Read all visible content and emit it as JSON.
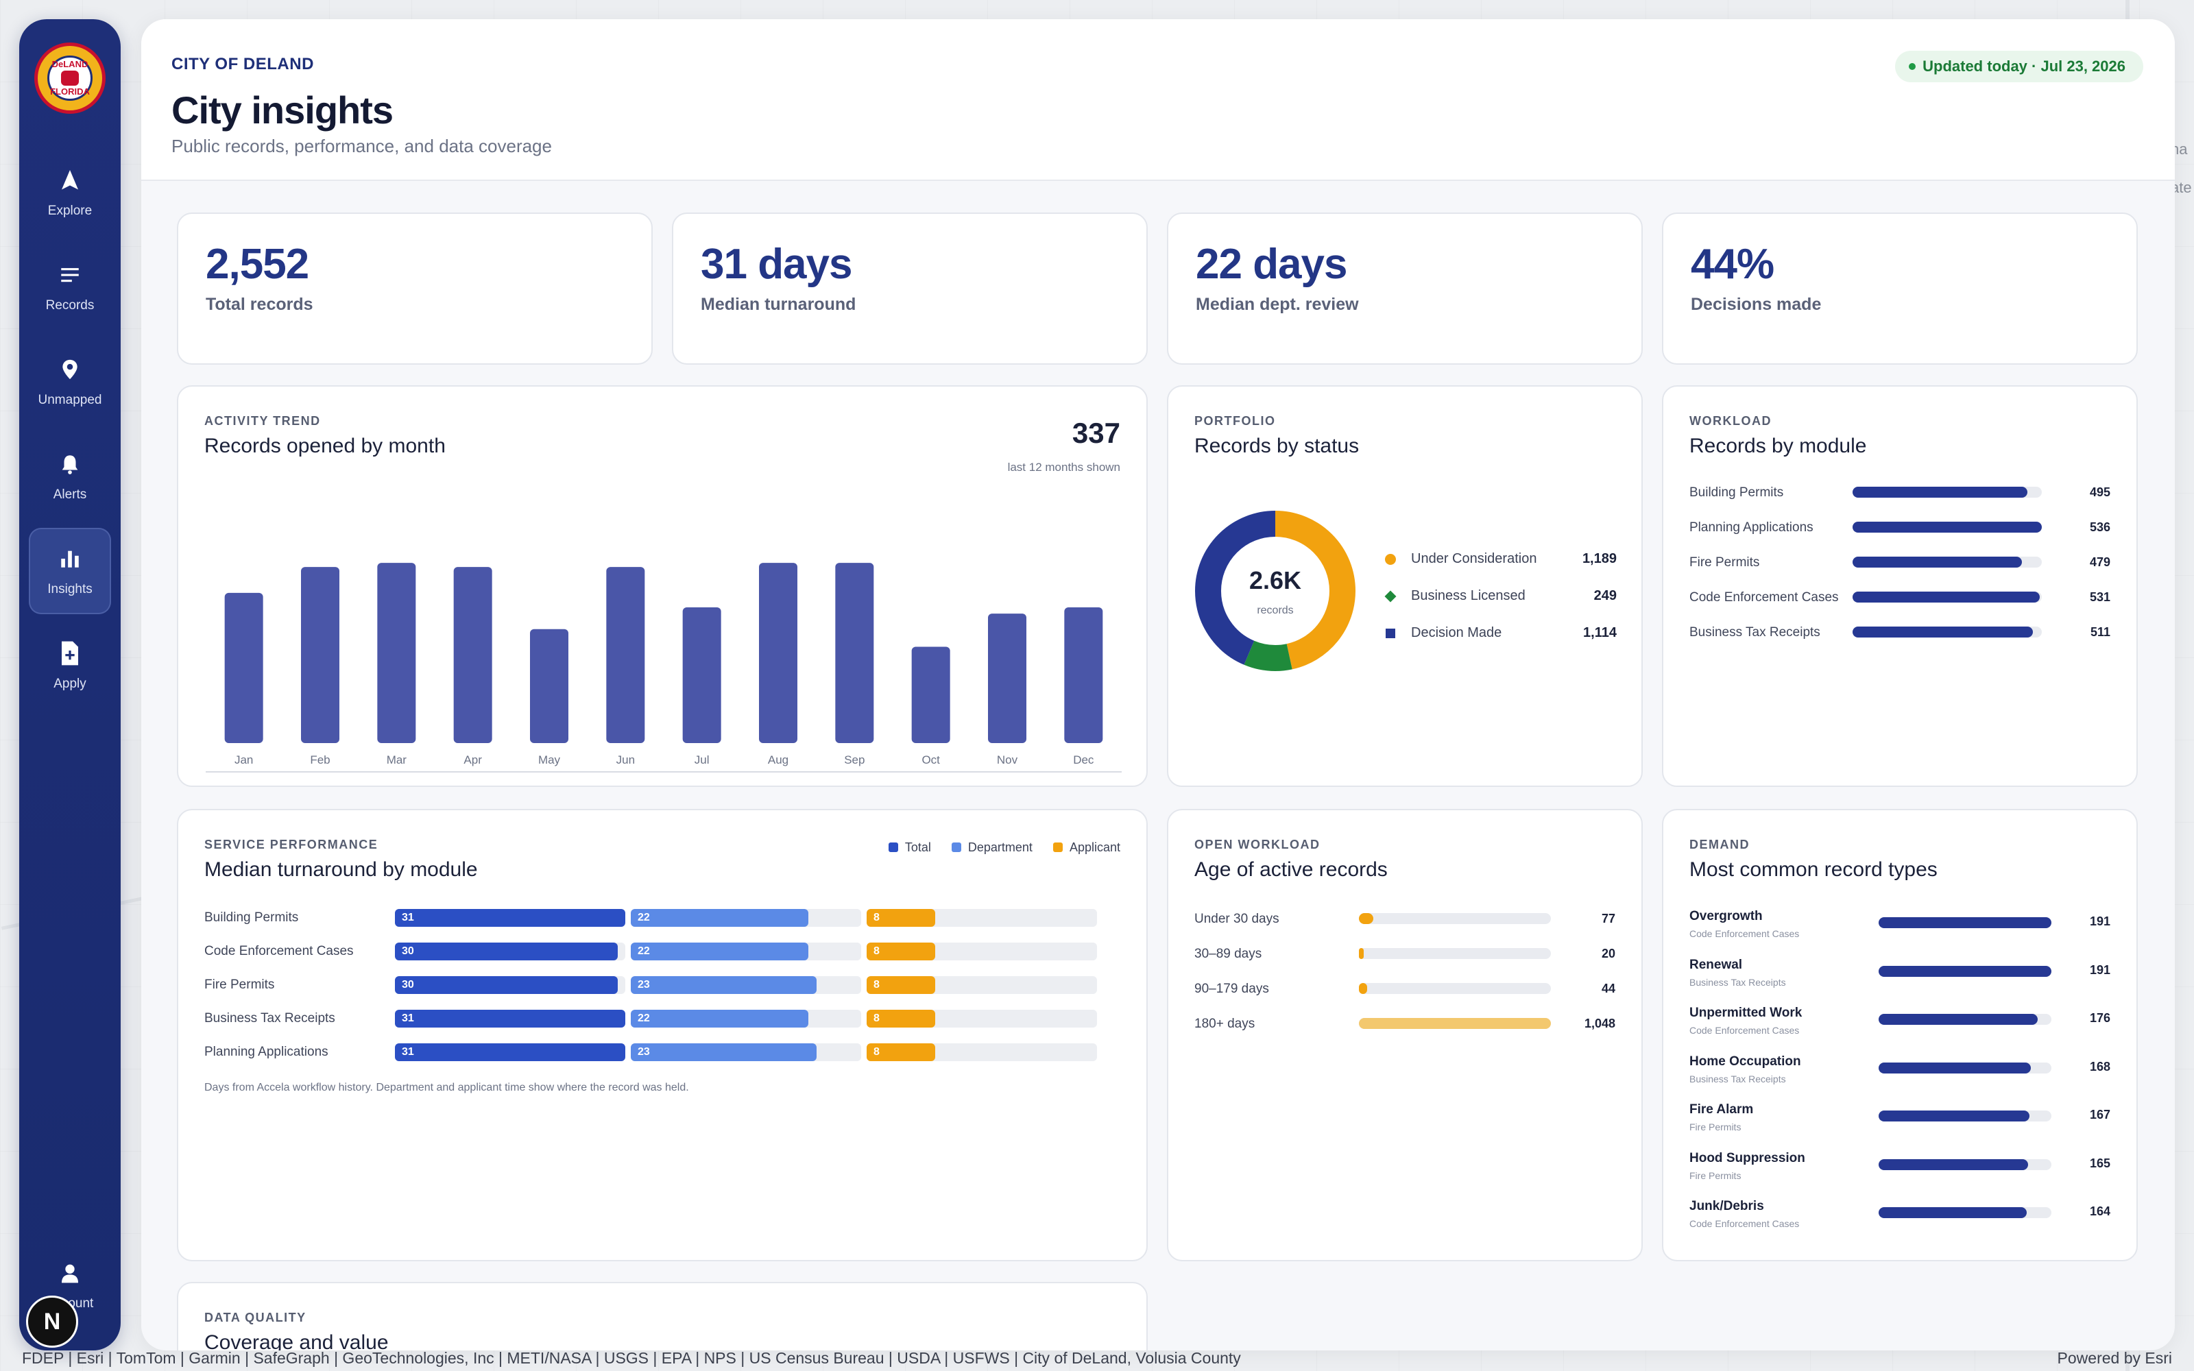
{
  "app": {
    "city_label": "CITY OF DELAND",
    "title": "City insights",
    "subtitle": "Public records, performance, and data coverage",
    "updated": "Updated today · Jul 23, 2026"
  },
  "logo": {
    "top": "DeLAND",
    "bottom": "FLORIDA"
  },
  "nav": {
    "explore": "Explore",
    "records": "Records",
    "unmapped": "Unmapped",
    "alerts": "Alerts",
    "insights": "Insights",
    "apply": "Apply",
    "account": "Account",
    "badge": "N"
  },
  "kpis": [
    {
      "value": "2,552",
      "label": "Total records"
    },
    {
      "value": "31 days",
      "label": "Median turnaround"
    },
    {
      "value": "22 days",
      "label": "Median dept. review"
    },
    {
      "value": "44%",
      "label": "Decisions made"
    }
  ],
  "trend": {
    "eyebrow": "ACTIVITY TREND",
    "title": "Records opened by month",
    "total": "337",
    "note": "last 12 months shown"
  },
  "portfolio": {
    "eyebrow": "PORTFOLIO",
    "title": "Records by status",
    "center_value": "2.6K",
    "center_label": "records",
    "items": [
      {
        "label": "Under Consideration",
        "value": "1,189"
      },
      {
        "label": "Business Licensed",
        "value": "249"
      },
      {
        "label": "Decision Made",
        "value": "1,114"
      }
    ]
  },
  "workload": {
    "eyebrow": "WORKLOAD",
    "title": "Records by module",
    "items": [
      {
        "label": "Building Permits",
        "value": "495"
      },
      {
        "label": "Planning Applications",
        "value": "536"
      },
      {
        "label": "Fire Permits",
        "value": "479"
      },
      {
        "label": "Code Enforcement Cases",
        "value": "531"
      },
      {
        "label": "Business Tax Receipts",
        "value": "511"
      }
    ]
  },
  "performance": {
    "eyebrow": "SERVICE PERFORMANCE",
    "title": "Median turnaround by module",
    "legend": {
      "total": "Total",
      "department": "Department",
      "applicant": "Applicant"
    },
    "rows": [
      {
        "label": "Building Permits",
        "total": "31",
        "department": "22",
        "applicant": "8"
      },
      {
        "label": "Code Enforcement Cases",
        "total": "30",
        "department": "22",
        "applicant": "8"
      },
      {
        "label": "Fire Permits",
        "total": "30",
        "department": "23",
        "applicant": "8"
      },
      {
        "label": "Business Tax Receipts",
        "total": "31",
        "department": "22",
        "applicant": "8"
      },
      {
        "label": "Planning Applications",
        "total": "31",
        "department": "23",
        "applicant": "8"
      }
    ],
    "note": "Days from Accela workflow history. Department and applicant time show where the record was held."
  },
  "age": {
    "eyebrow": "OPEN WORKLOAD",
    "title": "Age of active records",
    "items": [
      {
        "label": "Under 30 days",
        "value": "77",
        "fraction": 0.074
      },
      {
        "label": "30–89 days",
        "value": "20",
        "fraction": 0.019
      },
      {
        "label": "90–179 days",
        "value": "44",
        "fraction": 0.042
      },
      {
        "label": "180+ days",
        "value": "1,048",
        "fraction": 1.0
      }
    ]
  },
  "demand": {
    "eyebrow": "DEMAND",
    "title": "Most common record types",
    "items": [
      {
        "name": "Overgrowth",
        "module": "Code Enforcement Cases",
        "value": "191"
      },
      {
        "name": "Renewal",
        "module": "Business Tax Receipts",
        "value": "191"
      },
      {
        "name": "Unpermitted Work",
        "module": "Code Enforcement Cases",
        "value": "176"
      },
      {
        "name": "Home Occupation",
        "module": "Business Tax Receipts",
        "value": "168"
      },
      {
        "name": "Fire Alarm",
        "module": "Fire Permits",
        "value": "167"
      },
      {
        "name": "Hood Suppression",
        "module": "Fire Permits",
        "value": "165"
      },
      {
        "name": "Junk/Debris",
        "module": "Code Enforcement Cases",
        "value": "164"
      }
    ]
  },
  "quality": {
    "eyebrow": "DATA QUALITY",
    "title": "Coverage and value"
  },
  "footer": {
    "attribution": "FDEP | Esri | TomTom | Garmin | SafeGraph | GeoTechnologies, Inc | METI/NASA | USGS | EPA | NPS | US Census Bureau | USDA | USFWS | City of DeLand, Volusia County",
    "powered": "Powered by Esri"
  },
  "map_edge": {
    "line1": "na I",
    "line2": "ate"
  },
  "colors": {
    "primary": "#263893",
    "bar": "#4a56a8",
    "total": "#2b4fc4",
    "department": "#5b8ae6",
    "applicant": "#f2a20f",
    "licensed": "#1f8a3b"
  },
  "chart_data": [
    {
      "type": "bar",
      "title": "Records opened by month",
      "categories": [
        "Jan",
        "Feb",
        "Mar",
        "Apr",
        "May",
        "Jun",
        "Jul",
        "Aug",
        "Sep",
        "Oct",
        "Nov",
        "Dec"
      ],
      "values": [
        290,
        340,
        348,
        340,
        220,
        340,
        262,
        348,
        348,
        186,
        250,
        262
      ],
      "ylim": [
        0,
        360
      ],
      "grid": false
    },
    {
      "type": "pie",
      "title": "Records by status",
      "categories": [
        "Under Consideration",
        "Business Licensed",
        "Decision Made"
      ],
      "values": [
        1189,
        249,
        1114
      ],
      "colors": [
        "#f2a20f",
        "#1f8a3b",
        "#263893"
      ]
    }
  ]
}
